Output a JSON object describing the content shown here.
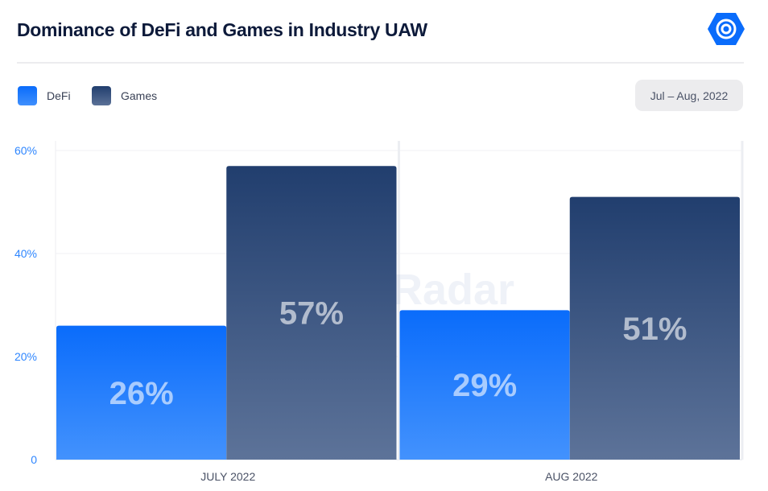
{
  "header": {
    "title": "Dominance of DeFi and Games in Industry UAW",
    "date_range": "Jul – Aug, 2022"
  },
  "legend": [
    {
      "label": "DeFi"
    },
    {
      "label": "Games"
    }
  ],
  "watermark": "DappRadar",
  "colors": {
    "defi_top": "#0a6cfb",
    "defi_bottom": "#3f8ffd",
    "games_top": "#213e6e",
    "games_bottom": "#5b7197"
  },
  "chart_data": {
    "type": "bar",
    "title": "Dominance of DeFi and Games in Industry UAW",
    "categories": [
      "JULY 2022",
      "AUG 2022"
    ],
    "series": [
      {
        "name": "DeFi",
        "values": [
          26,
          29
        ],
        "labels": [
          "26%",
          "29%"
        ]
      },
      {
        "name": "Games",
        "values": [
          57,
          51
        ],
        "labels": [
          "57%",
          "51%"
        ]
      }
    ],
    "yticks": [
      "0",
      "20%",
      "40%",
      "60%"
    ],
    "ytick_values": [
      0,
      20,
      40,
      60
    ],
    "ylim": [
      0,
      60
    ],
    "xlabel": "",
    "ylabel": "",
    "grid": true,
    "legend_position": "top-left"
  }
}
